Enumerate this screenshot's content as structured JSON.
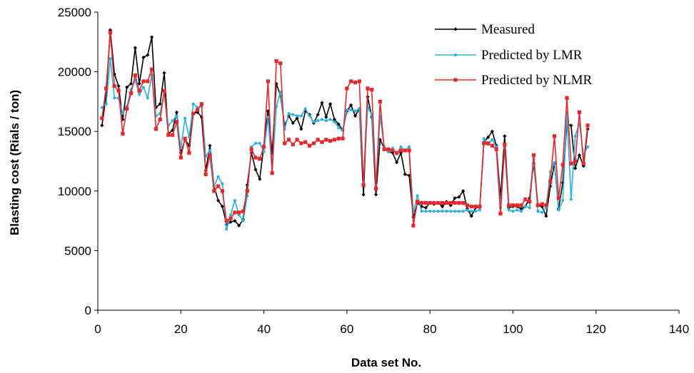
{
  "chart_data": {
    "type": "line",
    "xlabel": "Data set No.",
    "ylabel": "Blasting cost (Rials / ton)",
    "xlim": [
      0,
      140
    ],
    "ylim": [
      0,
      25000
    ],
    "x_ticks": [
      "0",
      "20",
      "40",
      "60",
      "80",
      "100",
      "120",
      "140"
    ],
    "y_ticks": [
      "0",
      "5000",
      "10000",
      "15000",
      "20000",
      "25000"
    ],
    "grid": false,
    "legend_position": "top-right",
    "series": [
      {
        "name": "Measured",
        "color": "#000000",
        "marker": "diamond",
        "x_start": 1,
        "values": [
          15500,
          18000,
          23500,
          19800,
          18800,
          16000,
          18700,
          19000,
          22000,
          19000,
          21200,
          21400,
          22900,
          17000,
          17300,
          19900,
          14800,
          15100,
          16600,
          13200,
          14300,
          13800,
          16500,
          16600,
          16200,
          11700,
          13800,
          10400,
          9200,
          8700,
          7200,
          7400,
          7500,
          7100,
          7600,
          10500,
          13200,
          11800,
          11000,
          13800,
          16700,
          13200,
          19000,
          18000,
          15500,
          16300,
          15700,
          16100,
          15200,
          16700,
          16400,
          15700,
          16400,
          17400,
          16200,
          17300,
          16000,
          15600,
          15100,
          16700,
          17200,
          16300,
          16900,
          9700,
          17900,
          16200,
          9700,
          14300,
          13600,
          13300,
          13200,
          12400,
          13200,
          11400,
          11300,
          7800,
          9000,
          8700,
          8600,
          9000,
          8900,
          9000,
          8700,
          9100,
          8800,
          9400,
          9500,
          10000,
          8500,
          7900,
          8600,
          8600,
          14100,
          14500,
          15000,
          13800,
          9400,
          14600,
          8600,
          8700,
          8700,
          8500,
          8700,
          9400,
          12300,
          8800,
          8700,
          7900,
          10400,
          12300,
          8500,
          10700,
          15600,
          15500,
          11900,
          13000,
          12100,
          15200
        ]
      },
      {
        "name": "Predicted by LMR",
        "color": "#29B0E0",
        "marker": "dot",
        "x_start": 1,
        "values": [
          17000,
          17300,
          21100,
          17800,
          17800,
          16500,
          17100,
          18500,
          19300,
          18100,
          18700,
          17800,
          19700,
          16300,
          16500,
          18300,
          15500,
          15900,
          16300,
          13600,
          16100,
          14500,
          17300,
          17000,
          17100,
          12900,
          13400,
          10400,
          11200,
          10600,
          6800,
          8000,
          9200,
          8000,
          7500,
          9600,
          13700,
          14000,
          14000,
          13300,
          16200,
          11500,
          17100,
          18300,
          15200,
          16500,
          16400,
          16300,
          16300,
          16900,
          16300,
          15800,
          15900,
          16000,
          15900,
          16000,
          15800,
          15300,
          15100,
          16800,
          16800,
          16700,
          16900,
          10700,
          17000,
          16400,
          10500,
          16300,
          13700,
          13300,
          13600,
          13100,
          13700,
          13400,
          13700,
          8200,
          9600,
          8300,
          8300,
          8300,
          8300,
          8300,
          8300,
          8300,
          8300,
          8300,
          8300,
          8300,
          8400,
          8300,
          8300,
          8400,
          14400,
          13900,
          14300,
          13700,
          8600,
          13600,
          8400,
          8300,
          8400,
          8300,
          8700,
          8600,
          12700,
          8300,
          8200,
          8600,
          11600,
          12400,
          8400,
          9200,
          16600,
          9300,
          14600,
          15700,
          13000,
          13700
        ]
      },
      {
        "name": "Predicted by NLMR",
        "color": "#E8272B",
        "marker": "square",
        "x_start": 1,
        "values": [
          16100,
          18600,
          23300,
          18800,
          18400,
          14800,
          16900,
          18200,
          19700,
          18400,
          19200,
          19200,
          20200,
          15200,
          16000,
          18400,
          14700,
          14700,
          15800,
          12800,
          14400,
          13200,
          16500,
          16800,
          17300,
          11400,
          13000,
          10000,
          10400,
          10000,
          7500,
          7700,
          8200,
          8200,
          8300,
          10000,
          13500,
          12800,
          12700,
          13700,
          19200,
          11500,
          20900,
          20700,
          14000,
          14300,
          13900,
          14300,
          14000,
          14100,
          13800,
          14000,
          14300,
          14100,
          14300,
          14200,
          14300,
          14400,
          14400,
          18600,
          19200,
          19100,
          19200,
          10500,
          18600,
          18500,
          10200,
          17500,
          13500,
          13500,
          13400,
          13200,
          13400,
          13400,
          13400,
          7100,
          9100,
          9000,
          9000,
          9000,
          9000,
          9000,
          9000,
          9000,
          9000,
          9000,
          9000,
          9000,
          8800,
          8700,
          8700,
          8700,
          14000,
          14000,
          13800,
          13500,
          8100,
          13900,
          8800,
          8800,
          8800,
          8800,
          9300,
          9100,
          13000,
          8800,
          8900,
          8800,
          10800,
          14600,
          9400,
          12200,
          17800,
          12300,
          12500,
          16600,
          12300,
          15500
        ]
      }
    ]
  }
}
